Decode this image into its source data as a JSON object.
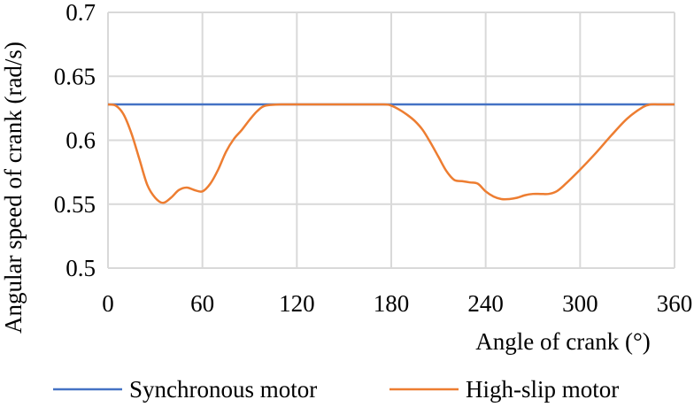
{
  "chart_data": {
    "type": "line",
    "xlabel": "Angle of crank (°)",
    "ylabel": "Angular speed of crank (rad/s)",
    "xlim": [
      0,
      360
    ],
    "ylim": [
      0.5,
      0.7
    ],
    "xticks": [
      0,
      60,
      120,
      180,
      240,
      300,
      360
    ],
    "yticks": [
      0.5,
      0.55,
      0.6,
      0.65,
      0.7
    ],
    "xtick_labels": [
      "0",
      "60",
      "120",
      "180",
      "240",
      "300",
      "360"
    ],
    "ytick_labels": [
      "0.5",
      "0.55",
      "0.6",
      "0.65",
      "0.7"
    ],
    "grid": true,
    "legend_position": "bottom",
    "series": [
      {
        "name": "Synchronous motor",
        "color": "#4472C4",
        "x": [
          0,
          360
        ],
        "y": [
          0.628,
          0.628
        ]
      },
      {
        "name": "High-slip motor",
        "color": "#ED7D31",
        "x": [
          0,
          5,
          10,
          15,
          20,
          25,
          30,
          35,
          40,
          45,
          50,
          55,
          60,
          65,
          70,
          75,
          80,
          85,
          90,
          95,
          100,
          110,
          120,
          150,
          175,
          180,
          185,
          190,
          195,
          200,
          205,
          210,
          215,
          220,
          225,
          230,
          235,
          240,
          245,
          250,
          255,
          260,
          265,
          270,
          275,
          280,
          285,
          290,
          300,
          310,
          320,
          330,
          340,
          345,
          350,
          360
        ],
        "y": [
          0.628,
          0.627,
          0.62,
          0.605,
          0.585,
          0.565,
          0.555,
          0.551,
          0.555,
          0.561,
          0.563,
          0.561,
          0.56,
          0.566,
          0.577,
          0.591,
          0.601,
          0.608,
          0.616,
          0.623,
          0.627,
          0.628,
          0.628,
          0.628,
          0.628,
          0.627,
          0.624,
          0.62,
          0.615,
          0.608,
          0.598,
          0.587,
          0.576,
          0.569,
          0.568,
          0.567,
          0.566,
          0.56,
          0.556,
          0.554,
          0.554,
          0.555,
          0.557,
          0.558,
          0.558,
          0.558,
          0.56,
          0.565,
          0.577,
          0.59,
          0.604,
          0.617,
          0.626,
          0.628,
          0.628,
          0.628
        ]
      }
    ]
  }
}
